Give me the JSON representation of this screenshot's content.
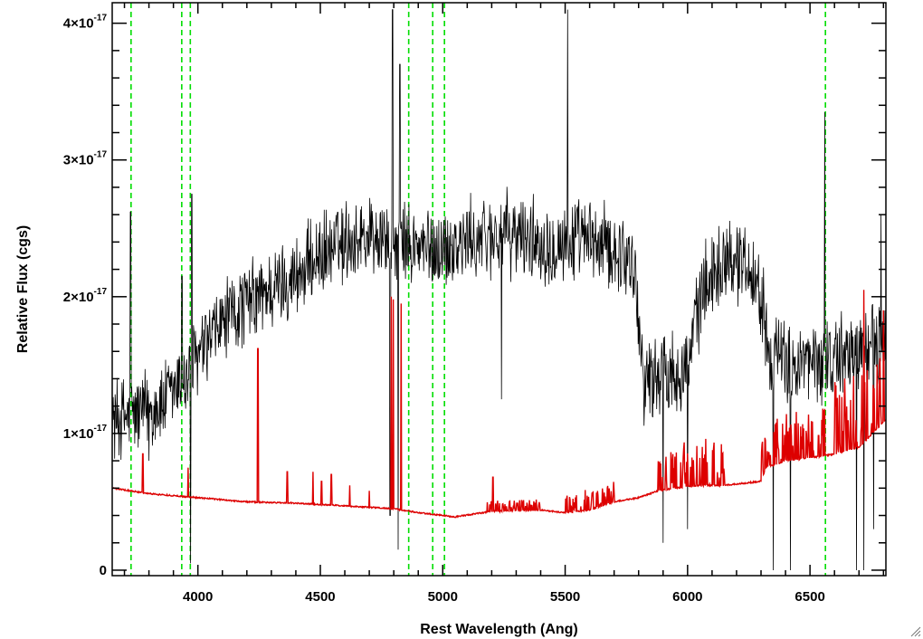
{
  "chart_data": {
    "type": "line",
    "title": "",
    "xlabel": "Rest Wavelength (Ang)",
    "ylabel": "Relative Flux (cgs)",
    "xlim": [
      3650,
      6810
    ],
    "ylim": [
      -4e-19,
      4.15e-17
    ],
    "x_ticks": [
      {
        "value": 4000,
        "label": "4000"
      },
      {
        "value": 4500,
        "label": "4500"
      },
      {
        "value": 5000,
        "label": "5000"
      },
      {
        "value": 5500,
        "label": "5500"
      },
      {
        "value": 6000,
        "label": "6000"
      },
      {
        "value": 6500,
        "label": "6500"
      }
    ],
    "x_minor_step": 100,
    "y_ticks": [
      {
        "value": 0,
        "mantissa": "0",
        "exponent": ""
      },
      {
        "value": 1e-17,
        "mantissa": "1×10",
        "exponent": "-17"
      },
      {
        "value": 2e-17,
        "mantissa": "2×10",
        "exponent": "-17"
      },
      {
        "value": 3e-17,
        "mantissa": "3×10",
        "exponent": "-17"
      },
      {
        "value": 4e-17,
        "mantissa": "4×10",
        "exponent": "-17"
      }
    ],
    "y_minor_step": 2e-18,
    "grid": false,
    "legend": "none",
    "reference_lines": {
      "color": "#00dd00",
      "style": "dashed",
      "x": [
        3727,
        3934,
        3969,
        4861,
        4959,
        5007,
        6563
      ]
    },
    "series": [
      {
        "color": "#000000",
        "style": "noisy",
        "trend": [
          [
            3650,
            1.1e-17
          ],
          [
            3750,
            1.15e-17
          ],
          [
            3850,
            1.2e-17
          ],
          [
            3950,
            1.4e-17
          ],
          [
            4000,
            1.55e-17
          ],
          [
            4100,
            1.8e-17
          ],
          [
            4200,
            1.95e-17
          ],
          [
            4300,
            2.05e-17
          ],
          [
            4400,
            2.15e-17
          ],
          [
            4500,
            2.3e-17
          ],
          [
            4600,
            2.4e-17
          ],
          [
            4700,
            2.45e-17
          ],
          [
            4800,
            2.4e-17
          ],
          [
            4900,
            2.35e-17
          ],
          [
            5000,
            2.35e-17
          ],
          [
            5100,
            2.4e-17
          ],
          [
            5200,
            2.45e-17
          ],
          [
            5300,
            2.45e-17
          ],
          [
            5400,
            2.4e-17
          ],
          [
            5500,
            2.4e-17
          ],
          [
            5600,
            2.4e-17
          ],
          [
            5700,
            2.35e-17
          ],
          [
            5780,
            2.25e-17
          ],
          [
            5820,
            1.4e-17
          ],
          [
            5900,
            1.45e-17
          ],
          [
            6000,
            1.5e-17
          ],
          [
            6060,
            2.05e-17
          ],
          [
            6150,
            2.3e-17
          ],
          [
            6250,
            2.25e-17
          ],
          [
            6300,
            2e-17
          ],
          [
            6340,
            1.6e-17
          ],
          [
            6400,
            1.5e-17
          ],
          [
            6500,
            1.5e-17
          ],
          [
            6600,
            1.55e-17
          ],
          [
            6700,
            1.6e-17
          ],
          [
            6810,
            1.7e-17
          ]
        ],
        "noise": 3e-18,
        "spikes": [
          [
            3725,
            2.62e-17
          ],
          [
            3800,
            8e-18
          ],
          [
            3935,
            2.15e-17
          ],
          [
            3975,
            2.75e-17
          ],
          [
            3970,
            5e-19
          ],
          [
            4795,
            4.1e-17
          ],
          [
            4785,
            4e-18
          ],
          [
            4825,
            3.7e-17
          ],
          [
            4818,
            1.5e-18
          ],
          [
            5240,
            1.25e-17
          ],
          [
            5510,
            4.1e-17
          ],
          [
            5900,
            2e-18
          ],
          [
            6000,
            3e-18
          ],
          [
            6350,
            0.0
          ],
          [
            6420,
            0.0
          ],
          [
            6560,
            3.35e-17
          ],
          [
            6690,
            0.0
          ],
          [
            6720,
            0.0
          ],
          [
            6760,
            3e-18
          ],
          [
            6790,
            2.6e-17
          ]
        ]
      },
      {
        "color": "#dd0000",
        "style": "template",
        "trend": [
          [
            3650,
            6e-18
          ],
          [
            3800,
            5.6e-18
          ],
          [
            4000,
            5.3e-18
          ],
          [
            4200,
            5e-18
          ],
          [
            4400,
            4.9e-18
          ],
          [
            4600,
            4.7e-18
          ],
          [
            4800,
            4.5e-18
          ],
          [
            4900,
            4.2e-18
          ],
          [
            5050,
            3.9e-18
          ],
          [
            5200,
            4.3e-18
          ],
          [
            5400,
            4.4e-18
          ],
          [
            5500,
            4.2e-18
          ],
          [
            5600,
            4.4e-18
          ],
          [
            5700,
            5e-18
          ],
          [
            5800,
            5.3e-18
          ],
          [
            5880,
            5.8e-18
          ],
          [
            5950,
            6e-18
          ],
          [
            6050,
            6.2e-18
          ],
          [
            6150,
            6.2e-18
          ],
          [
            6300,
            6.5e-18
          ],
          [
            6320,
            7.5e-18
          ],
          [
            6400,
            8e-18
          ],
          [
            6500,
            8.2e-18
          ],
          [
            6600,
            8.5e-18
          ],
          [
            6700,
            9e-18
          ],
          [
            6810,
            1.1e-17
          ]
        ],
        "noise_ranges": [
          [
            5180,
            5400,
            8e-19
          ],
          [
            5500,
            5700,
            1.5e-18
          ],
          [
            5880,
            6150,
            3.5e-18
          ],
          [
            6300,
            6560,
            3.5e-18
          ],
          [
            6600,
            6810,
            5.5e-18
          ]
        ],
        "spikes": [
          [
            3775,
            8.5e-18
          ],
          [
            3960,
            7.5e-18
          ],
          [
            4245,
            1.62e-17
          ],
          [
            4365,
            7.2e-18
          ],
          [
            4470,
            7.2e-18
          ],
          [
            4505,
            6.5e-18
          ],
          [
            4545,
            7e-18
          ],
          [
            4620,
            6.2e-18
          ],
          [
            4700,
            5.8e-18
          ],
          [
            4790,
            2e-17
          ],
          [
            4798,
            1.98e-17
          ],
          [
            4830,
            1.95e-17
          ],
          [
            5205,
            6.8e-18
          ],
          [
            6560,
            1.18e-17
          ],
          [
            6720,
            2.05e-17
          ],
          [
            6800,
            1.9e-17
          ]
        ]
      }
    ]
  }
}
